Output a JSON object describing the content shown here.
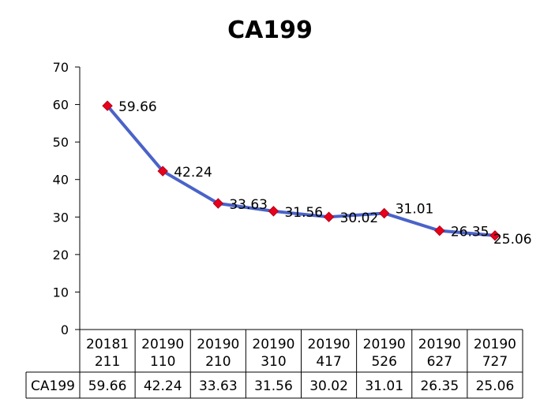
{
  "chart_data": {
    "type": "line",
    "title": "CA199",
    "categories": [
      "20181211",
      "20190110",
      "20190210",
      "20190310",
      "20190417",
      "20190526",
      "20190627",
      "20190727"
    ],
    "series": [
      {
        "name": "CA199",
        "values": [
          59.66,
          42.24,
          33.63,
          31.56,
          30.02,
          31.01,
          26.35,
          25.06
        ],
        "labels": [
          "59.66",
          "42.24",
          "33.63",
          "31.56",
          "30.02",
          "31.01",
          "26.35",
          "25.06"
        ]
      }
    ],
    "ylim": [
      0,
      70
    ],
    "yticks": [
      0,
      10,
      20,
      30,
      40,
      50,
      60,
      70
    ],
    "line_color": "#4a63c8",
    "marker_color": "#e8001c",
    "grid": false,
    "legend": "data-table"
  }
}
